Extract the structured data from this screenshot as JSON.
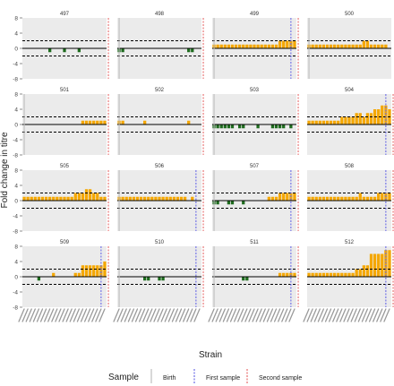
{
  "chart_data": {
    "type": "bar",
    "ylabel": "Fold change in titre",
    "xlabel": "Strain",
    "ylim": [
      -8,
      8
    ],
    "y_ticks": [
      -8,
      -4,
      0,
      4,
      8
    ],
    "threshold_lines": [
      2,
      -2
    ],
    "n_strains": 23,
    "grid": "none",
    "bar_color": "#F5A700",
    "negative_bar_color": "#1E6B1E",
    "legend": {
      "title": "Sample",
      "placement": "bottom",
      "entries": [
        {
          "label": "Birth",
          "color": "#BDBDBD"
        },
        {
          "label": "First sample",
          "color": "#6B6BE6"
        },
        {
          "label": "Second sample",
          "color": "#E66B6B"
        }
      ]
    },
    "panels": [
      {
        "id": "497",
        "values": [
          0,
          0,
          0,
          0,
          0,
          0,
          0,
          -1,
          0,
          0,
          0,
          -1,
          0,
          0,
          0,
          -1,
          0,
          0,
          0,
          0,
          0,
          0,
          0
        ],
        "birth": null,
        "first": null,
        "second": 23.5
      },
      {
        "id": "498",
        "values": [
          -1,
          -1,
          0,
          0,
          0,
          0,
          0,
          0,
          0,
          0,
          0,
          0,
          0,
          0,
          0,
          0,
          0,
          0,
          0,
          -1,
          -1,
          0,
          0
        ],
        "birth": 0.5,
        "first": null,
        "second": 23.5
      },
      {
        "id": "499",
        "values": [
          1,
          1,
          1,
          1,
          1,
          1,
          1,
          1,
          1,
          1,
          1,
          1,
          1,
          1,
          1,
          1,
          1,
          1,
          2,
          2,
          2,
          2,
          2
        ],
        "birth": 0.5,
        "first": 21.5,
        "second": 23.5
      },
      {
        "id": "500",
        "values": [
          1,
          1,
          1,
          1,
          1,
          1,
          1,
          1,
          1,
          1,
          1,
          1,
          1,
          1,
          1,
          2,
          2,
          1,
          1,
          1,
          1,
          1,
          0
        ],
        "birth": 0.5,
        "first": null,
        "second": null
      },
      {
        "id": "501",
        "values": [
          0,
          0,
          0,
          0,
          0,
          0,
          0,
          0,
          0,
          0,
          0,
          0,
          0,
          0,
          0,
          0,
          1,
          1,
          1,
          1,
          1,
          1,
          1
        ],
        "birth": 0.5,
        "first": null,
        "second": 23.5
      },
      {
        "id": "502",
        "values": [
          1,
          1,
          0,
          0,
          0,
          0,
          0,
          1,
          0,
          0,
          0,
          0,
          0,
          0,
          0,
          0,
          0,
          0,
          0,
          1,
          0,
          0,
          0
        ],
        "birth": 0.5,
        "first": null,
        "second": 23.5
      },
      {
        "id": "503",
        "values": [
          -1,
          -1,
          -1,
          -1,
          -1,
          -1,
          0,
          -1,
          -1,
          0,
          0,
          0,
          -1,
          0,
          0,
          0,
          -1,
          -1,
          -1,
          -1,
          0,
          -1,
          0
        ],
        "birth": 0.5,
        "first": null,
        "second": 23.5
      },
      {
        "id": "504",
        "values": [
          1,
          1,
          1,
          1,
          1,
          1,
          1,
          1,
          1,
          2,
          2,
          2,
          2,
          3,
          3,
          2,
          3,
          3,
          4,
          4,
          5,
          5,
          4
        ],
        "birth": null,
        "first": 21.5,
        "second": 23.5
      },
      {
        "id": "505",
        "values": [
          1,
          1,
          1,
          1,
          1,
          1,
          1,
          1,
          1,
          1,
          1,
          1,
          1,
          1,
          2,
          2,
          2,
          3,
          3,
          2,
          2,
          1,
          1
        ],
        "birth": null,
        "first": null,
        "second": 23.5
      },
      {
        "id": "506",
        "values": [
          1,
          1,
          1,
          1,
          1,
          1,
          1,
          1,
          1,
          1,
          1,
          1,
          1,
          1,
          1,
          1,
          1,
          1,
          1,
          0,
          1,
          0,
          0
        ],
        "birth": 0.5,
        "first": 21.5,
        "second": 23.5
      },
      {
        "id": "507",
        "values": [
          -1,
          -1,
          0,
          0,
          -1,
          -1,
          0,
          0,
          -1,
          0,
          0,
          0,
          0,
          0,
          0,
          1,
          1,
          1,
          2,
          2,
          2,
          2,
          2
        ],
        "birth": 0.5,
        "first": 21.5,
        "second": 23.5
      },
      {
        "id": "508",
        "values": [
          1,
          1,
          1,
          1,
          1,
          1,
          1,
          1,
          1,
          1,
          1,
          1,
          1,
          1,
          2,
          1,
          1,
          1,
          1,
          2,
          2,
          2,
          2
        ],
        "birth": null,
        "first": 21.5,
        "second": 23.5
      },
      {
        "id": "509",
        "values": [
          0,
          0,
          0,
          0,
          -1,
          0,
          0,
          0,
          1,
          0,
          0,
          0,
          0,
          0,
          1,
          1,
          3,
          3,
          3,
          3,
          3,
          3,
          4
        ],
        "birth": null,
        "first": 21.5,
        "second": 23.5
      },
      {
        "id": "510",
        "values": [
          0,
          0,
          0,
          0,
          0,
          0,
          0,
          -1,
          -1,
          0,
          0,
          -1,
          -1,
          0,
          0,
          0,
          0,
          0,
          0,
          0,
          0,
          0,
          0
        ],
        "birth": 0.5,
        "first": 21.5,
        "second": 23.5
      },
      {
        "id": "511",
        "values": [
          0,
          0,
          0,
          0,
          0,
          0,
          0,
          0,
          -1,
          -1,
          0,
          0,
          0,
          0,
          0,
          0,
          0,
          0,
          1,
          1,
          1,
          1,
          1
        ],
        "birth": 0.5,
        "first": 21.5,
        "second": 23.5
      },
      {
        "id": "512",
        "values": [
          1,
          1,
          1,
          1,
          1,
          1,
          1,
          1,
          1,
          1,
          1,
          1,
          1,
          2,
          2,
          3,
          3,
          6,
          6,
          6,
          6,
          7,
          7
        ],
        "birth": null,
        "first": 21.5,
        "second": 23.5
      }
    ]
  }
}
